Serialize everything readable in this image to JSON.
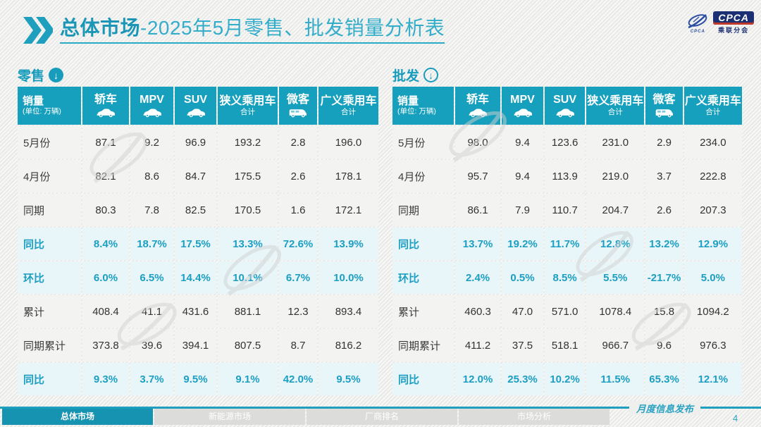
{
  "header": {
    "title_bold": "总体市场",
    "title_rest": "-2025年5月零售、批发销量分析表",
    "logo": {
      "emblem_small_text": "CPCA",
      "box_text": "CPCA",
      "sub_text": "乘联分会"
    }
  },
  "columns_display": [
    {
      "key": "sales",
      "label": "销量",
      "sub": "(单位: 万辆)",
      "icon": null
    },
    {
      "key": "sedan",
      "label": "轿车",
      "sub": null,
      "icon": "car"
    },
    {
      "key": "mpv",
      "label": "MPV",
      "sub": null,
      "icon": "car"
    },
    {
      "key": "suv",
      "label": "SUV",
      "sub": null,
      "icon": "car"
    },
    {
      "key": "narrow-total",
      "label": "狭义乘用车",
      "sub": "合计",
      "icon": null
    },
    {
      "key": "microvan",
      "label": "微客",
      "sub": null,
      "icon": "van"
    },
    {
      "key": "broad-total",
      "label": "广义乘用车",
      "sub": "合计",
      "icon": null
    }
  ],
  "chart_data": [
    {
      "type": "table",
      "title": "零售",
      "unit_note": "销量(单位: 万辆)",
      "columns": [
        "销量",
        "轿车",
        "MPV",
        "SUV",
        "狭义乘用车合计",
        "微客",
        "广义乘用车合计"
      ],
      "rows": [
        {
          "label": "5月份",
          "highlight": false,
          "values": [
            "87.1",
            "9.2",
            "96.9",
            "193.2",
            "2.8",
            "196.0"
          ]
        },
        {
          "label": "4月份",
          "highlight": false,
          "values": [
            "82.1",
            "8.6",
            "84.7",
            "175.5",
            "2.6",
            "178.1"
          ]
        },
        {
          "label": "同期",
          "highlight": false,
          "values": [
            "80.3",
            "7.8",
            "82.5",
            "170.5",
            "1.6",
            "172.1"
          ]
        },
        {
          "label": "同比",
          "highlight": true,
          "values": [
            "8.4%",
            "18.7%",
            "17.5%",
            "13.3%",
            "72.6%",
            "13.9%"
          ]
        },
        {
          "label": "环比",
          "highlight": true,
          "values": [
            "6.0%",
            "6.5%",
            "14.4%",
            "10.1%",
            "6.7%",
            "10.0%"
          ]
        },
        {
          "label": "累计",
          "highlight": false,
          "values": [
            "408.4",
            "41.1",
            "431.6",
            "881.1",
            "12.3",
            "893.4"
          ]
        },
        {
          "label": "同期累计",
          "highlight": false,
          "values": [
            "373.8",
            "39.6",
            "394.1",
            "807.5",
            "8.7",
            "816.2"
          ]
        },
        {
          "label": "同比",
          "highlight": true,
          "values": [
            "9.3%",
            "3.7%",
            "9.5%",
            "9.1%",
            "42.0%",
            "9.5%"
          ]
        }
      ]
    },
    {
      "type": "table",
      "title": "批发",
      "unit_note": "销量(单位: 万辆)",
      "columns": [
        "销量",
        "轿车",
        "MPV",
        "SUV",
        "狭义乘用车合计",
        "微客",
        "广义乘用车合计"
      ],
      "rows": [
        {
          "label": "5月份",
          "highlight": false,
          "values": [
            "98.0",
            "9.4",
            "123.6",
            "231.0",
            "2.9",
            "234.0"
          ]
        },
        {
          "label": "4月份",
          "highlight": false,
          "values": [
            "95.7",
            "9.4",
            "113.9",
            "219.0",
            "3.7",
            "222.8"
          ]
        },
        {
          "label": "同期",
          "highlight": false,
          "values": [
            "86.1",
            "7.9",
            "110.7",
            "204.7",
            "2.6",
            "207.3"
          ]
        },
        {
          "label": "同比",
          "highlight": true,
          "values": [
            "13.7%",
            "19.2%",
            "11.7%",
            "12.8%",
            "13.2%",
            "12.9%"
          ]
        },
        {
          "label": "环比",
          "highlight": true,
          "values": [
            "2.4%",
            "0.5%",
            "8.5%",
            "5.5%",
            "-21.7%",
            "5.0%"
          ]
        },
        {
          "label": "累计",
          "highlight": false,
          "values": [
            "460.3",
            "47.0",
            "571.0",
            "1078.4",
            "15.8",
            "1094.2"
          ]
        },
        {
          "label": "同期累计",
          "highlight": false,
          "values": [
            "411.2",
            "37.5",
            "518.1",
            "966.7",
            "9.6",
            "976.3"
          ]
        },
        {
          "label": "同比",
          "highlight": true,
          "values": [
            "12.0%",
            "25.3%",
            "10.2%",
            "11.5%",
            "65.3%",
            "12.1%"
          ]
        }
      ]
    }
  ],
  "footer": {
    "tabs": [
      {
        "key": "overall-market",
        "label": "总体市场",
        "active": true
      },
      {
        "key": "nev-market",
        "label": "新能源市场",
        "active": false
      },
      {
        "key": "oem-ranking",
        "label": "厂商排名",
        "active": false
      },
      {
        "key": "market-analysis",
        "label": "市场分析",
        "active": false
      }
    ],
    "publication": "月度信息发布",
    "page": "4"
  },
  "colors": {
    "accent": "#17a0bd",
    "accent_light": "#2baac7",
    "highlight_bg": "#e8f5f9",
    "highlight_text": "#1c9fc2",
    "logo_navy": "#1b2f73",
    "inactive_tab": "#dcdcdb"
  }
}
